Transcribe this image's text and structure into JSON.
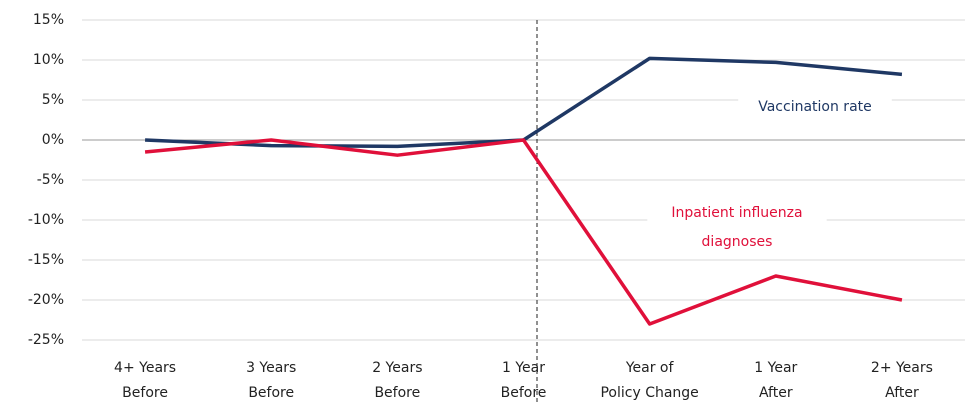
{
  "chart_data": {
    "type": "line",
    "categories": [
      "4+ Years\nBefore",
      "3 Years\nBefore",
      "2 Years\nBefore",
      "1 Year\nBefore",
      "Year of\nPolicy Change",
      "1 Year\nAfter",
      "2+ Years\nAfter"
    ],
    "series": [
      {
        "name": "Vaccination rate",
        "color": "#1f3864",
        "values": [
          0,
          -0.7,
          -0.8,
          0,
          10.2,
          9.7,
          8.2
        ]
      },
      {
        "name": "Inpatient influenza diagnoses",
        "color": "#e0103a",
        "values": [
          -1.5,
          0,
          -1.9,
          0,
          -23,
          -17,
          -20
        ]
      }
    ],
    "ylim": [
      -25,
      15
    ],
    "yticks": [
      {
        "value": -25,
        "label": "-25%"
      },
      {
        "value": -20,
        "label": "-20%"
      },
      {
        "value": -15,
        "label": "-15%"
      },
      {
        "value": -10,
        "label": "-10%"
      },
      {
        "value": -5,
        "label": "-5%"
      },
      {
        "value": 0,
        "label": "0%"
      },
      {
        "value": 5,
        "label": "5%"
      },
      {
        "value": 10,
        "label": "10%"
      },
      {
        "value": 15,
        "label": "15%"
      }
    ],
    "grid": true
  }
}
